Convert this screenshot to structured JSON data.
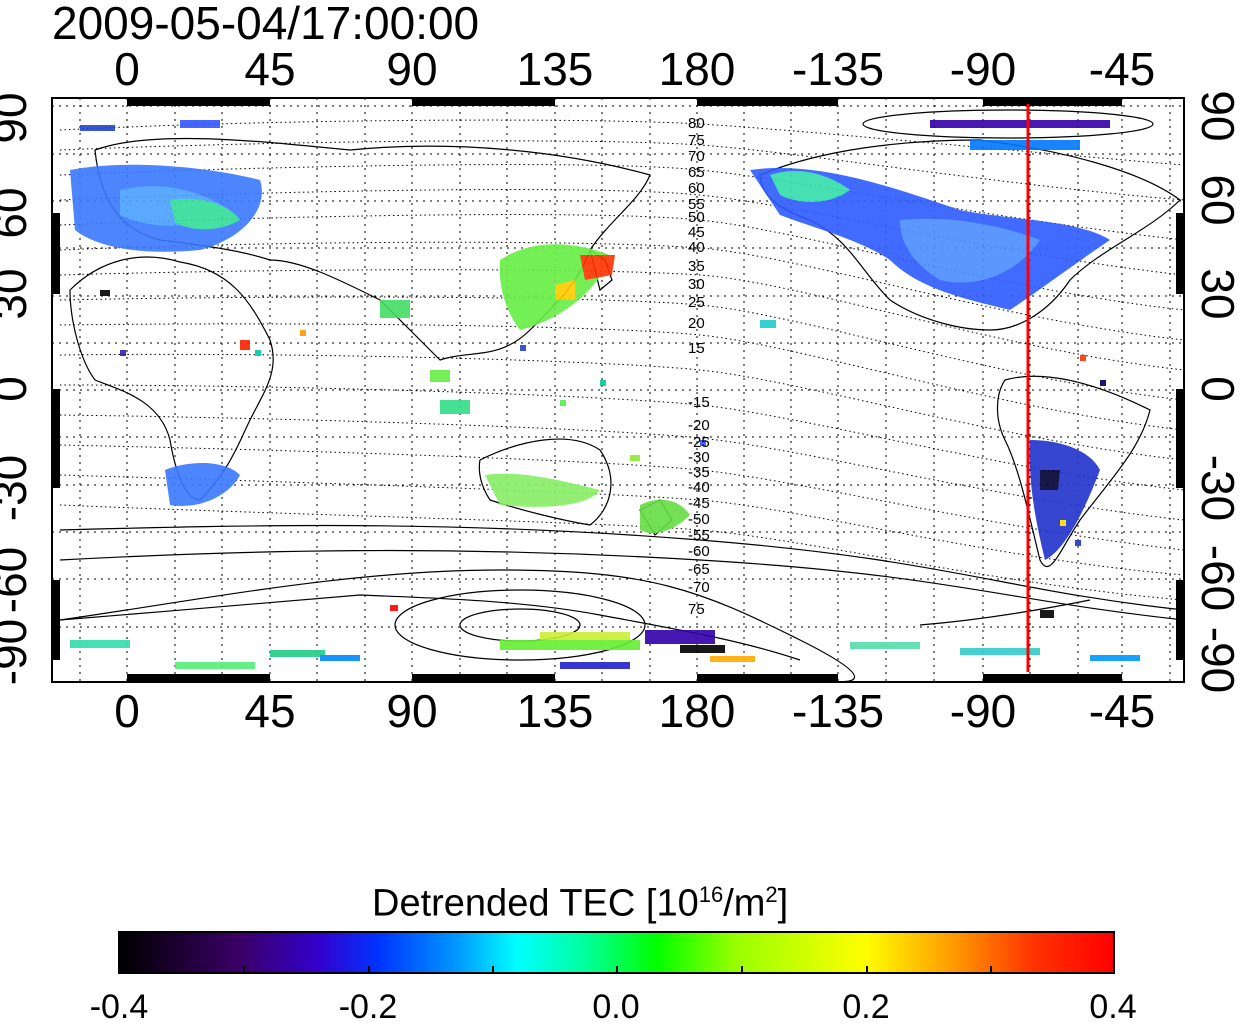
{
  "timestamp": "2009-05-04/17:00:00",
  "lon_ticks_top": [
    "0",
    "45",
    "90",
    "135",
    "180",
    "-135",
    "-90",
    "-45"
  ],
  "lon_ticks_bottom": [
    "0",
    "45",
    "90",
    "135",
    "180",
    "-135",
    "-90",
    "-45"
  ],
  "lat_ticks_left": [
    "90",
    "60",
    "30",
    "0",
    "-30",
    "-60",
    "-90"
  ],
  "lat_ticks_right": [
    "90",
    "60",
    "30",
    "0",
    "-30",
    "-60",
    "-90"
  ],
  "contour_labels_north": [
    "80",
    "75",
    "70",
    "65",
    "60",
    "55",
    "50",
    "45",
    "40",
    "35",
    "30",
    "25",
    "20",
    "15"
  ],
  "contour_labels_south": [
    "-15",
    "-20",
    "-25",
    "-30",
    "-35",
    "-40",
    "-45",
    "-50",
    "-55",
    "-60",
    "-65",
    "-70",
    "75"
  ],
  "colorbar": {
    "title_prefix": "Detrended TEC  [10",
    "title_exp1": "16",
    "title_mid": "/m",
    "title_exp2": "2",
    "title_suffix": "]",
    "ticks": [
      "-0.4",
      "-0.2",
      "0.0",
      "0.2",
      "0.4"
    ],
    "range": [
      -0.4,
      0.4
    ],
    "colors": [
      "#000000",
      "#3a0066",
      "#3300cc",
      "#0033ff",
      "#0099ff",
      "#00ffff",
      "#00ff99",
      "#00ff00",
      "#99ff00",
      "#ffff00",
      "#ff9900",
      "#ff3300",
      "#ff0000"
    ]
  },
  "marker_line": {
    "lon": -73,
    "color": "#ff0000"
  }
}
